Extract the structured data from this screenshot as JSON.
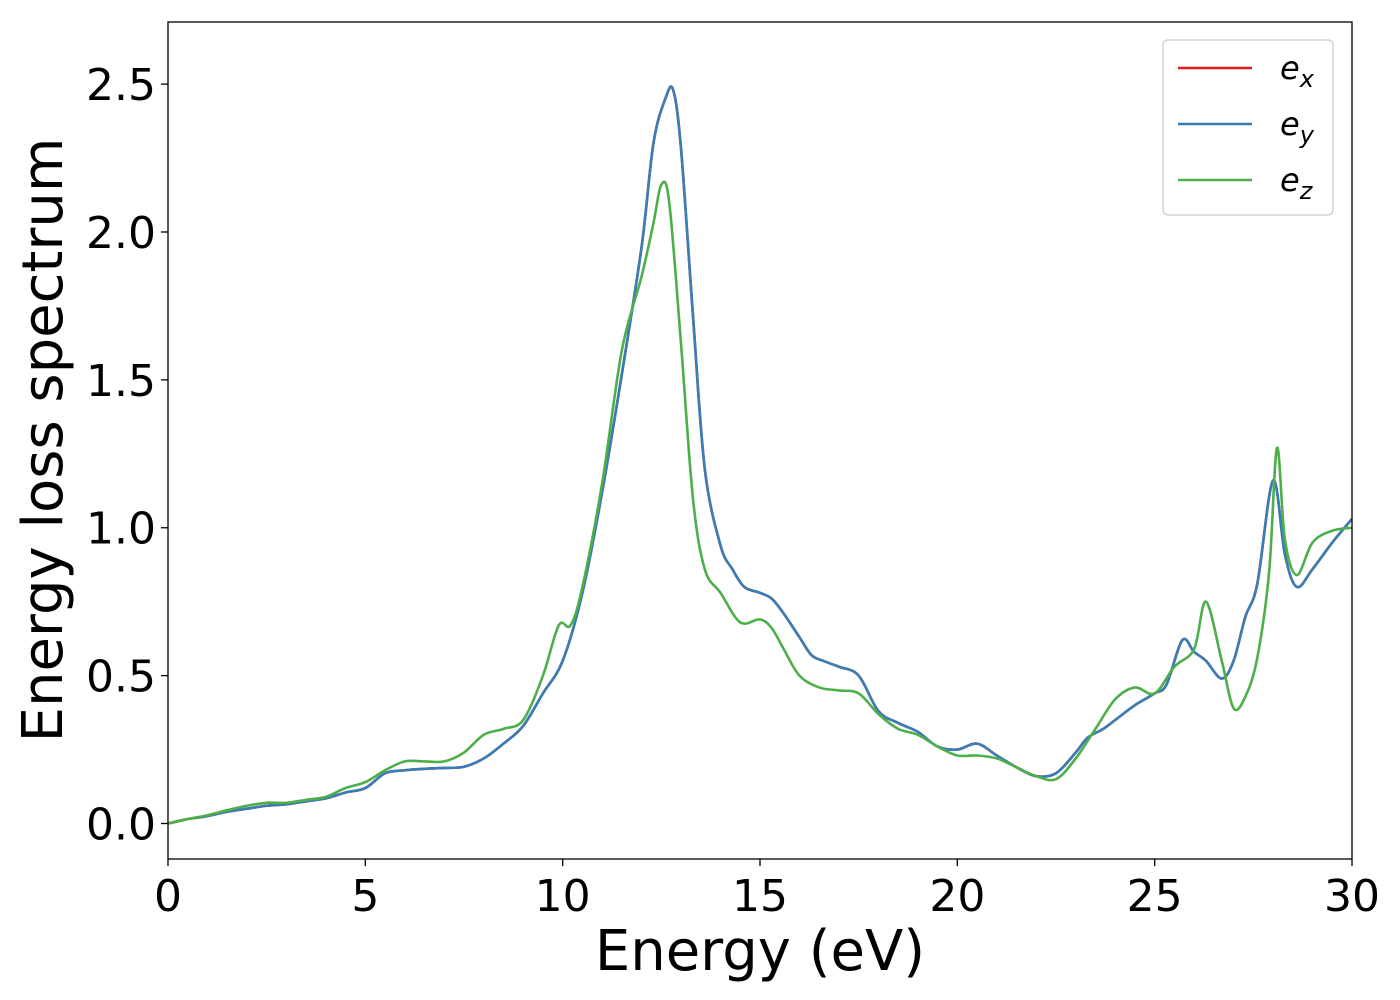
{
  "chart_data": {
    "type": "line",
    "xlabel": "Energy (eV)",
    "ylabel": "Energy loss spectrum",
    "xlim": [
      0,
      30
    ],
    "ylim": [
      -0.12,
      2.71
    ],
    "xticks": [
      "0",
      "5",
      "10",
      "15",
      "20",
      "25",
      "30"
    ],
    "yticks": [
      "0.0",
      "0.5",
      "1.0",
      "1.5",
      "2.0",
      "2.5"
    ],
    "grid": false,
    "legend_position": "top-right",
    "series": [
      {
        "name": "e",
        "subscript": "x",
        "color": "#e41a1c",
        "x": [
          0,
          0.5,
          1,
          1.5,
          2,
          2.5,
          3,
          3.5,
          4,
          4.5,
          5,
          5.5,
          6,
          6.5,
          7,
          7.5,
          8,
          8.5,
          9,
          9.5,
          10,
          10.5,
          11,
          11.5,
          12,
          12.3,
          12.6,
          12.8,
          13,
          13.3,
          13.6,
          14,
          14.3,
          14.6,
          15,
          15.3,
          15.6,
          16,
          16.3,
          16.6,
          17,
          17.5,
          18,
          18.5,
          19,
          19.5,
          20,
          20.5,
          21,
          21.5,
          22,
          22.5,
          23,
          23.3,
          23.7,
          24,
          24.5,
          25,
          25.3,
          25.7,
          26,
          26.3,
          26.7,
          27,
          27.3,
          27.6,
          28,
          28.3,
          28.6,
          29,
          29.5,
          30
        ],
        "values": [
          0,
          0.015,
          0.025,
          0.04,
          0.05,
          0.06,
          0.065,
          0.075,
          0.085,
          0.105,
          0.12,
          0.17,
          0.18,
          0.185,
          0.188,
          0.192,
          0.22,
          0.27,
          0.33,
          0.44,
          0.55,
          0.78,
          1.12,
          1.52,
          1.95,
          2.3,
          2.45,
          2.48,
          2.28,
          1.72,
          1.2,
          0.94,
          0.86,
          0.8,
          0.78,
          0.76,
          0.71,
          0.63,
          0.57,
          0.55,
          0.53,
          0.5,
          0.38,
          0.34,
          0.31,
          0.26,
          0.25,
          0.27,
          0.23,
          0.19,
          0.16,
          0.17,
          0.24,
          0.29,
          0.32,
          0.35,
          0.4,
          0.44,
          0.47,
          0.62,
          0.58,
          0.55,
          0.49,
          0.55,
          0.7,
          0.81,
          1.16,
          0.91,
          0.8,
          0.86,
          0.95,
          1.03
        ]
      },
      {
        "name": "e",
        "subscript": "y",
        "color": "#377eb8",
        "x": [
          0,
          0.5,
          1,
          1.5,
          2,
          2.5,
          3,
          3.5,
          4,
          4.5,
          5,
          5.5,
          6,
          6.5,
          7,
          7.5,
          8,
          8.5,
          9,
          9.5,
          10,
          10.5,
          11,
          11.5,
          12,
          12.3,
          12.6,
          12.8,
          13,
          13.3,
          13.6,
          14,
          14.3,
          14.6,
          15,
          15.3,
          15.6,
          16,
          16.3,
          16.6,
          17,
          17.5,
          18,
          18.5,
          19,
          19.5,
          20,
          20.5,
          21,
          21.5,
          22,
          22.5,
          23,
          23.3,
          23.7,
          24,
          24.5,
          25,
          25.3,
          25.7,
          26,
          26.3,
          26.7,
          27,
          27.3,
          27.6,
          28,
          28.3,
          28.6,
          29,
          29.5,
          30
        ],
        "values": [
          0,
          0.015,
          0.025,
          0.04,
          0.05,
          0.06,
          0.065,
          0.075,
          0.085,
          0.105,
          0.12,
          0.17,
          0.18,
          0.185,
          0.188,
          0.192,
          0.22,
          0.27,
          0.33,
          0.44,
          0.55,
          0.78,
          1.12,
          1.52,
          1.95,
          2.3,
          2.45,
          2.48,
          2.28,
          1.72,
          1.2,
          0.94,
          0.86,
          0.8,
          0.78,
          0.76,
          0.71,
          0.63,
          0.57,
          0.55,
          0.53,
          0.5,
          0.38,
          0.34,
          0.31,
          0.26,
          0.25,
          0.27,
          0.23,
          0.19,
          0.16,
          0.17,
          0.24,
          0.29,
          0.32,
          0.35,
          0.4,
          0.44,
          0.47,
          0.62,
          0.58,
          0.55,
          0.49,
          0.55,
          0.7,
          0.81,
          1.16,
          0.91,
          0.8,
          0.86,
          0.95,
          1.03
        ]
      },
      {
        "name": "e",
        "subscript": "z",
        "color": "#4daf4a",
        "x": [
          0,
          0.5,
          1,
          1.5,
          2,
          2.5,
          3,
          3.5,
          4,
          4.5,
          5,
          5.5,
          6,
          6.5,
          7,
          7.5,
          8,
          8.5,
          9,
          9.5,
          9.9,
          10.2,
          10.5,
          11,
          11.5,
          12,
          12.3,
          12.5,
          12.7,
          13,
          13.3,
          13.6,
          14,
          14.5,
          15,
          15.3,
          15.6,
          16,
          16.5,
          17,
          17.5,
          18,
          18.5,
          19,
          19.5,
          20,
          20.5,
          21,
          21.5,
          22,
          22.5,
          23,
          23.5,
          24,
          24.5,
          25,
          25.5,
          26,
          26.3,
          26.7,
          27,
          27.3,
          27.6,
          27.9,
          28.1,
          28.3,
          28.6,
          29,
          29.5,
          30
        ],
        "values": [
          0,
          0.015,
          0.028,
          0.045,
          0.06,
          0.07,
          0.07,
          0.08,
          0.09,
          0.12,
          0.14,
          0.18,
          0.21,
          0.21,
          0.21,
          0.24,
          0.3,
          0.32,
          0.35,
          0.5,
          0.67,
          0.67,
          0.8,
          1.15,
          1.6,
          1.85,
          2.03,
          2.16,
          2.1,
          1.62,
          1.1,
          0.86,
          0.78,
          0.68,
          0.69,
          0.66,
          0.59,
          0.5,
          0.46,
          0.45,
          0.44,
          0.37,
          0.32,
          0.3,
          0.26,
          0.23,
          0.23,
          0.22,
          0.19,
          0.16,
          0.15,
          0.22,
          0.32,
          0.42,
          0.46,
          0.44,
          0.53,
          0.59,
          0.75,
          0.55,
          0.39,
          0.43,
          0.56,
          0.85,
          1.27,
          0.96,
          0.84,
          0.95,
          0.99,
          1.0
        ]
      }
    ]
  }
}
